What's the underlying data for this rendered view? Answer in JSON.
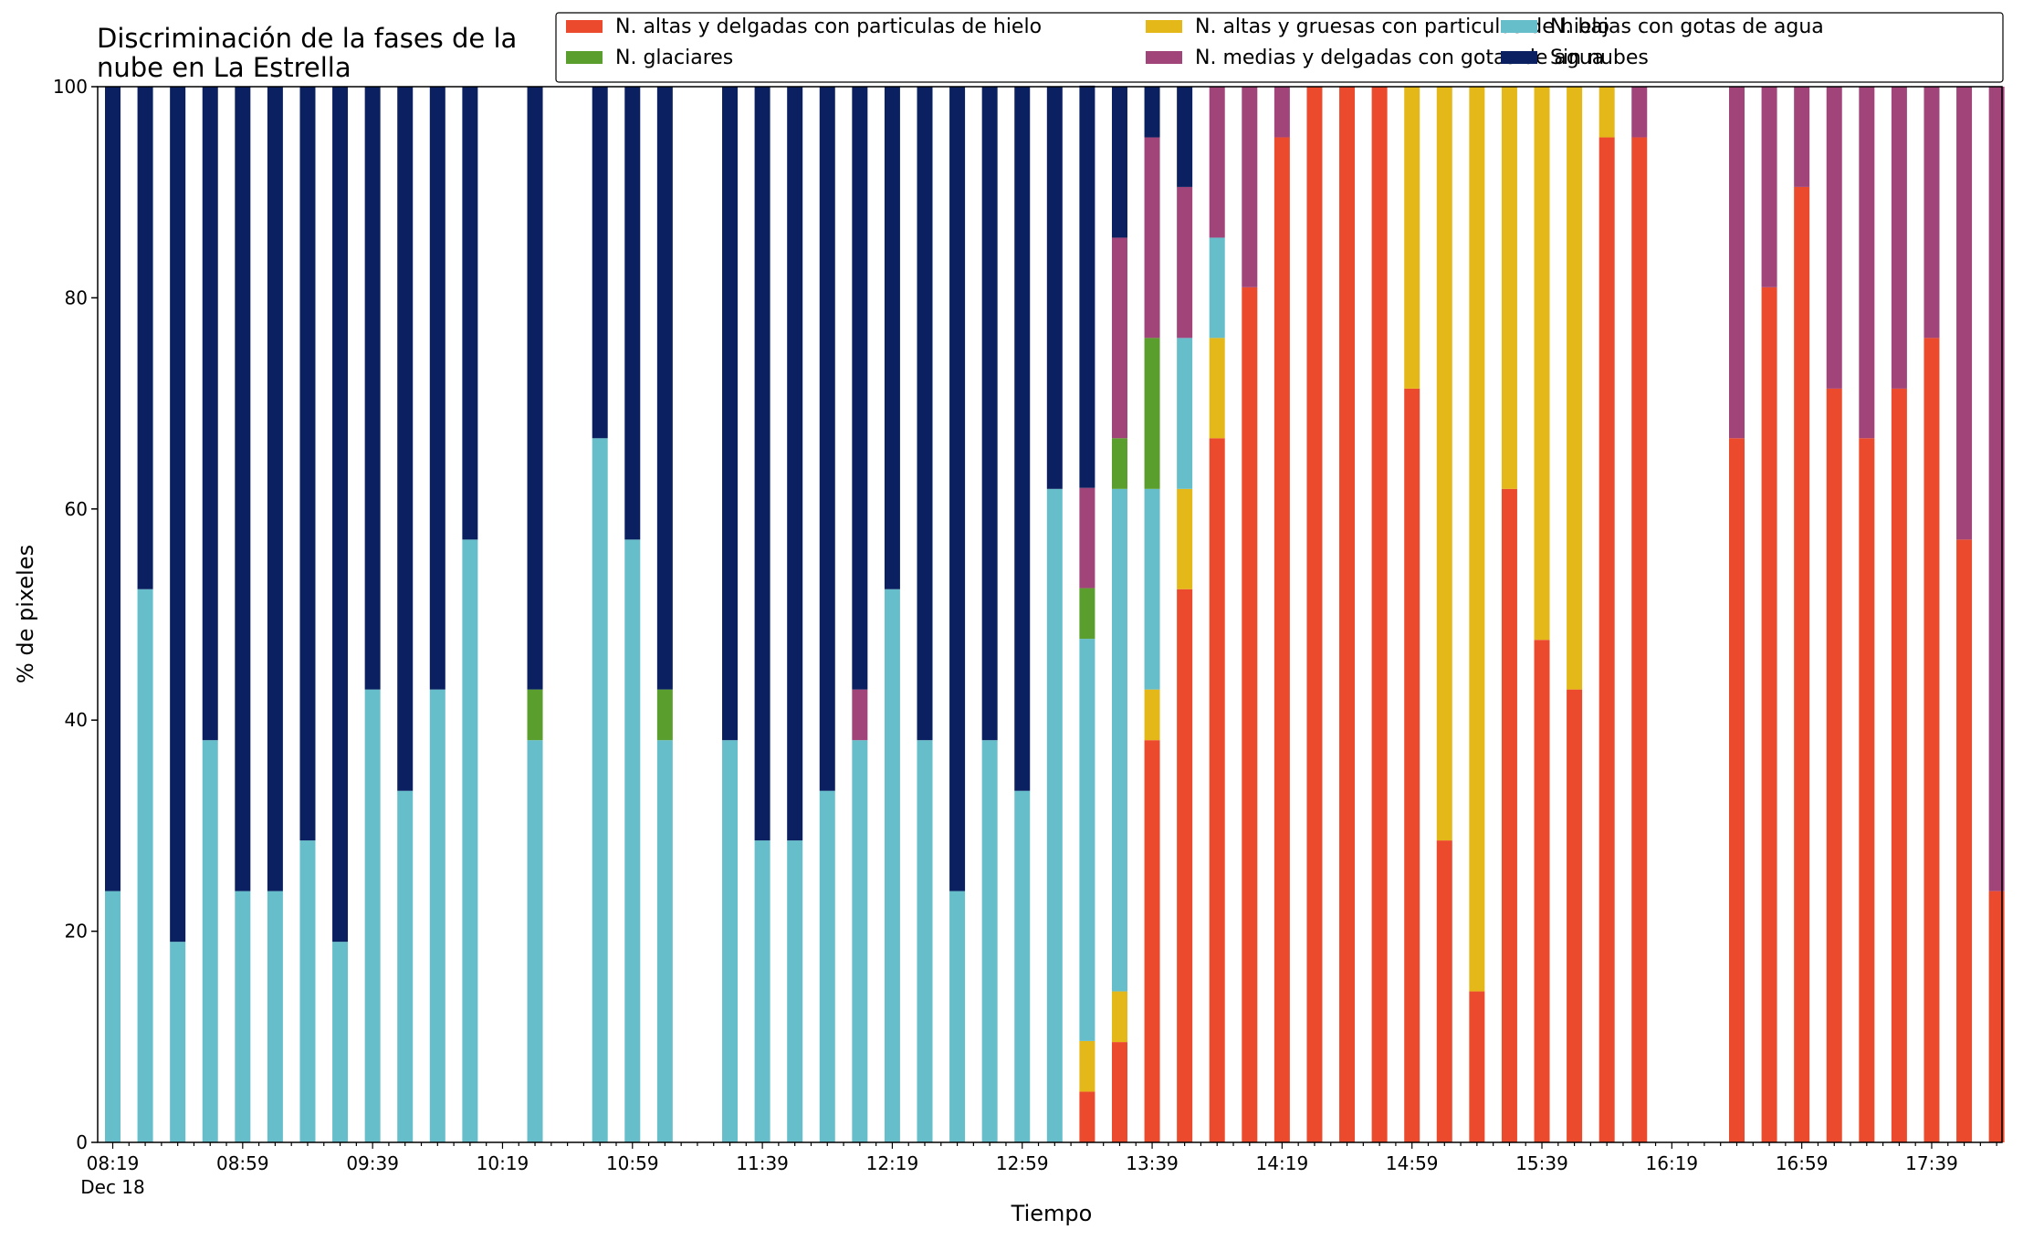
{
  "chart_data": {
    "type": "bar",
    "stacked": true,
    "title": "Discriminación de la fases de la nube en La Estrella",
    "title_lines": [
      "Discriminación de la fases de la",
      "nube en La Estrella"
    ],
    "xlabel": "Tiempo",
    "ylabel": "% de pixeles",
    "ylim": [
      0,
      100
    ],
    "yticks": [
      "0",
      "20",
      "40",
      "60",
      "80",
      "100"
    ],
    "x_start": "08:19",
    "x_interval_minutes": 10,
    "xticks": [
      "08:19",
      "08:59",
      "09:39",
      "10:19",
      "10:59",
      "11:39",
      "12:19",
      "12:59",
      "13:39",
      "14:19",
      "14:59",
      "15:39",
      "16:19",
      "16:59",
      "17:39"
    ],
    "date_label": "Dec 18",
    "grid": false,
    "legend_placement": "top-right",
    "series": [
      {
        "name": "N. altas y delgadas con particulas de hielo",
        "color": "#ec4a2c",
        "values": [
          0,
          0,
          0,
          0,
          0,
          0,
          0,
          0,
          0,
          0,
          0,
          0,
          0,
          0,
          0,
          0,
          0,
          0,
          0,
          0,
          0,
          0,
          0,
          0,
          0,
          0,
          0,
          0,
          0,
          0,
          4.8,
          9.5,
          38.1,
          52.4,
          66.7,
          81,
          95.2,
          100,
          100,
          100,
          71.4,
          28.6,
          14.3,
          61.9,
          47.6,
          42.9,
          95.2,
          95.2,
          0,
          0,
          66.7,
          81,
          90.5,
          71.4,
          66.7,
          71.4,
          76.2,
          57.1,
          23.8
        ]
      },
      {
        "name": "N. altas y gruesas con particulas de hielo",
        "color": "#e5b81a",
        "values": [
          0,
          0,
          0,
          0,
          0,
          0,
          0,
          0,
          0,
          0,
          0,
          0,
          0,
          0,
          0,
          0,
          0,
          0,
          0,
          0,
          0,
          0,
          0,
          0,
          0,
          0,
          0,
          0,
          0,
          0,
          4.8,
          4.8,
          4.8,
          9.5,
          9.5,
          0,
          0,
          0,
          0,
          0,
          28.6,
          71.4,
          85.7,
          38.1,
          52.4,
          57.1,
          4.8,
          0,
          0,
          0,
          0,
          0,
          0,
          0,
          0,
          0,
          0,
          0,
          0
        ]
      },
      {
        "name": "N. bajas con gotas de agua",
        "color": "#67becb",
        "values": [
          23.8,
          52.4,
          19,
          38.1,
          23.8,
          23.8,
          28.6,
          19,
          42.9,
          33.3,
          42.9,
          57.1,
          0,
          38.1,
          0,
          66.7,
          57.1,
          38.1,
          0,
          38.1,
          28.6,
          28.6,
          33.3,
          38.1,
          52.4,
          38.1,
          23.8,
          38.1,
          33.3,
          61.9,
          38.1,
          47.6,
          19,
          14.3,
          9.5,
          0,
          0,
          0,
          0,
          0,
          0,
          0,
          0,
          0,
          0,
          0,
          0,
          0,
          0,
          0,
          0,
          0,
          0,
          0,
          0,
          0,
          0,
          0,
          0
        ]
      },
      {
        "name": "N. glaciares",
        "color": "#5a9e2e",
        "values": [
          0,
          0,
          0,
          0,
          0,
          0,
          0,
          0,
          0,
          0,
          0,
          0,
          0,
          4.8,
          0,
          0,
          0,
          4.8,
          0,
          0,
          0,
          0,
          0,
          0,
          0,
          0,
          0,
          0,
          0,
          0,
          4.8,
          4.8,
          14.3,
          0,
          0,
          0,
          0,
          0,
          0,
          0,
          0,
          0,
          0,
          0,
          0,
          0,
          0,
          0,
          0,
          0,
          0,
          0,
          0,
          0,
          0,
          0,
          0,
          0,
          0
        ]
      },
      {
        "name": "N. medias y delgadas con gotas de agua",
        "color": "#a0447a",
        "values": [
          0,
          0,
          0,
          0,
          0,
          0,
          0,
          0,
          0,
          0,
          0,
          0,
          0,
          0,
          0,
          0,
          0,
          0,
          0,
          0,
          0,
          0,
          0,
          4.8,
          0,
          0,
          0,
          0,
          0,
          0,
          9.5,
          19,
          19,
          14.3,
          14.3,
          19,
          4.8,
          0,
          0,
          0,
          0,
          0,
          0,
          0,
          0,
          0,
          0,
          4.8,
          0,
          0,
          33.3,
          19,
          9.5,
          28.6,
          33.3,
          28.6,
          23.8,
          42.9,
          76.2
        ]
      },
      {
        "name": "Sin nubes",
        "color": "#0a2060",
        "values": [
          76.2,
          47.6,
          81,
          61.9,
          76.2,
          76.2,
          71.4,
          81,
          57.1,
          66.7,
          57.1,
          42.9,
          0,
          57.1,
          0,
          33.3,
          42.9,
          57.1,
          0,
          61.9,
          71.4,
          71.4,
          66.7,
          57.1,
          47.6,
          61.9,
          76.2,
          61.9,
          66.7,
          38.1,
          38.1,
          14.3,
          4.8,
          9.5,
          0,
          0,
          0,
          0,
          0,
          0,
          0,
          0,
          0,
          0,
          0,
          0,
          0,
          0,
          0,
          0,
          0,
          0,
          0,
          0,
          0,
          0,
          0,
          0,
          0
        ]
      }
    ]
  }
}
